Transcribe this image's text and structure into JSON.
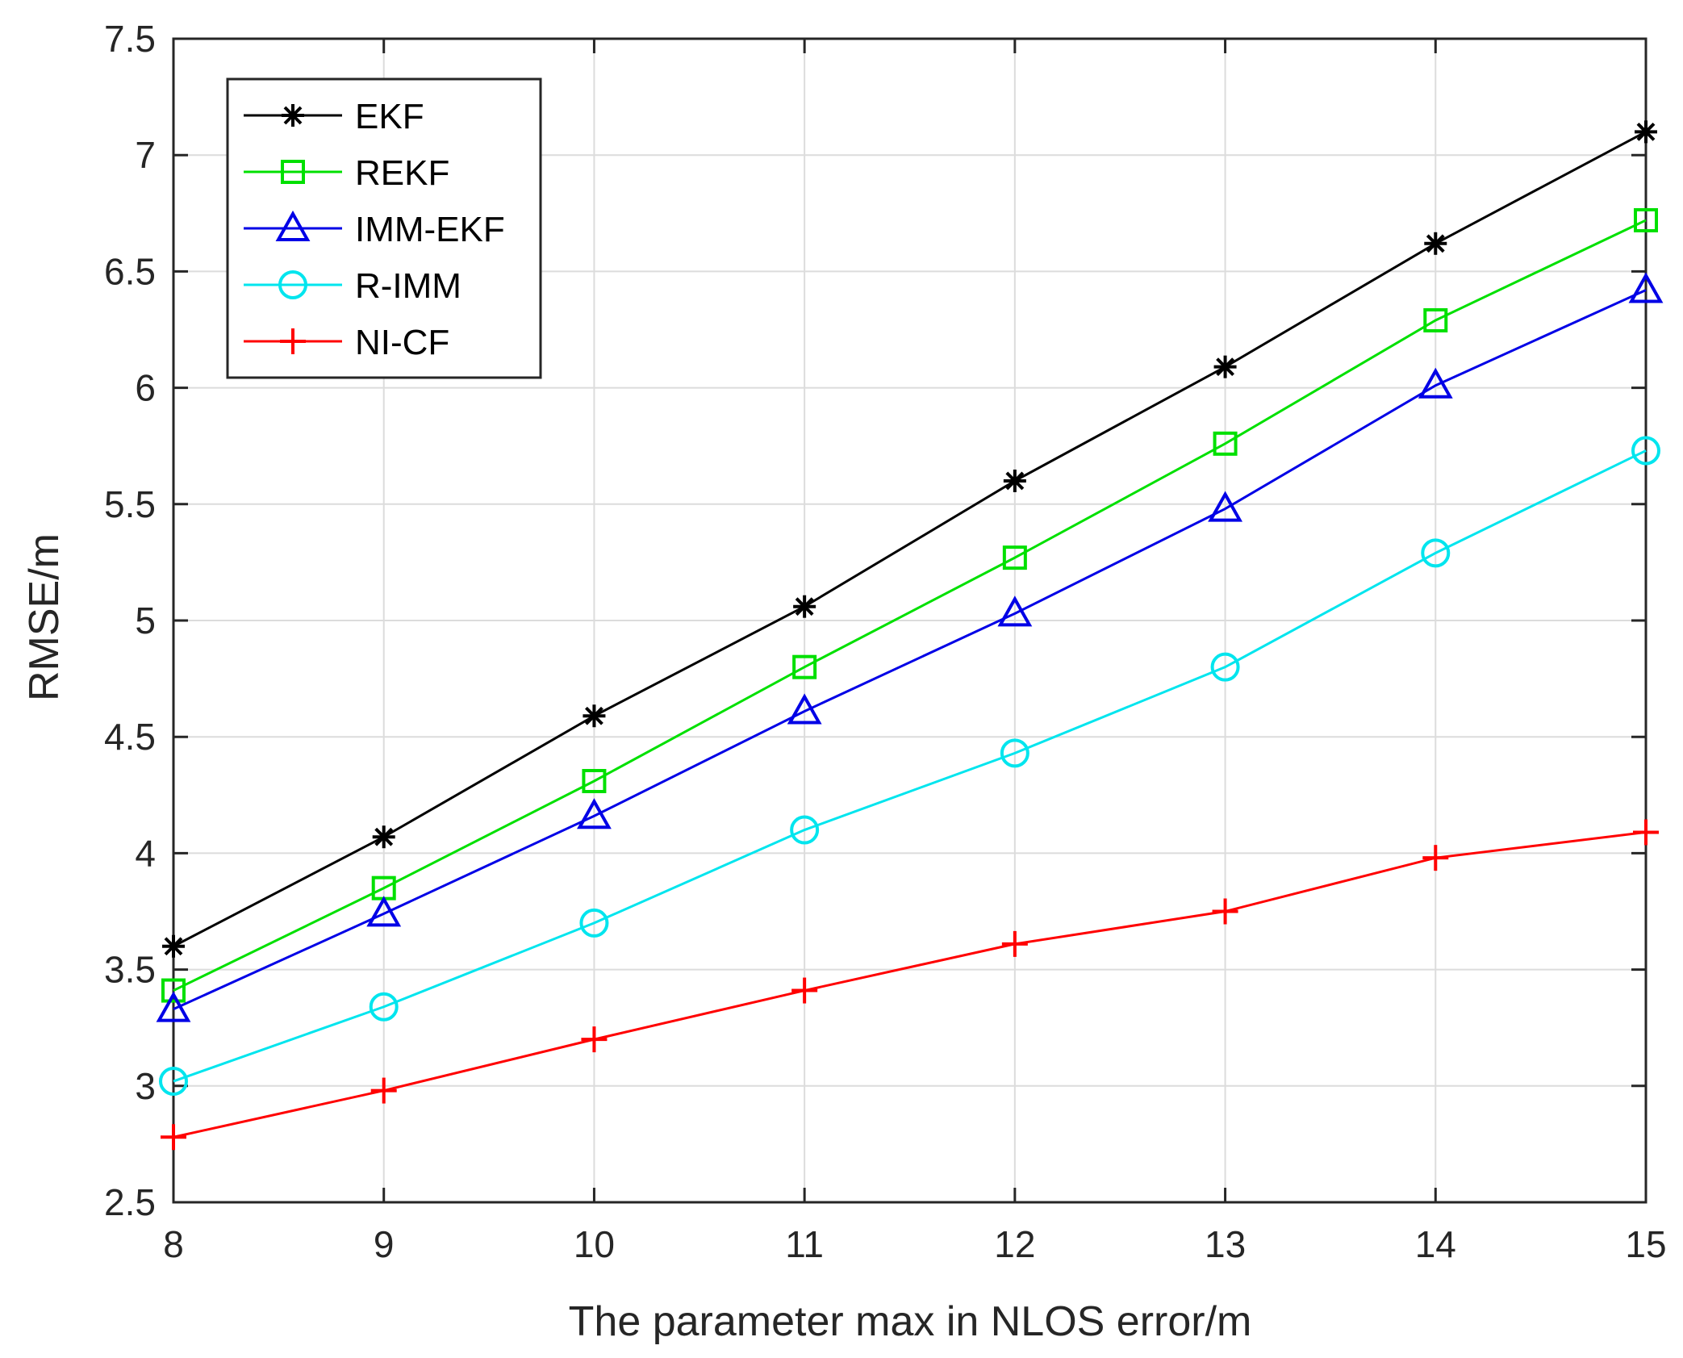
{
  "chart_data": {
    "type": "line",
    "title": "",
    "xlabel": "The parameter max in NLOS error/m",
    "ylabel": "RMSE/m",
    "x": [
      8,
      9,
      10,
      11,
      12,
      13,
      14,
      15
    ],
    "xlim": [
      8,
      15
    ],
    "ylim": [
      2.5,
      7.5
    ],
    "xticks": [
      "8",
      "9",
      "10",
      "11",
      "12",
      "13",
      "14",
      "15"
    ],
    "yticks": [
      "2.5",
      "3",
      "3.5",
      "4",
      "4.5",
      "5",
      "5.5",
      "6",
      "6.5",
      "7",
      "7.5"
    ],
    "ytick_values": [
      2.5,
      3,
      3.5,
      4,
      4.5,
      5,
      5.5,
      6,
      6.5,
      7,
      7.5
    ],
    "grid": true,
    "legend_position": "top-left",
    "series": [
      {
        "name": "EKF",
        "color": "#000000",
        "marker": "asterisk",
        "values": [
          3.6,
          4.07,
          4.59,
          5.06,
          5.6,
          6.09,
          6.62,
          7.1
        ]
      },
      {
        "name": "REKF",
        "color": "#00e000",
        "marker": "square",
        "values": [
          3.41,
          3.85,
          4.31,
          4.8,
          5.27,
          5.76,
          6.29,
          6.72
        ]
      },
      {
        "name": "IMM-EKF",
        "color": "#0000e6",
        "marker": "triangle",
        "values": [
          3.33,
          3.74,
          4.16,
          4.61,
          5.03,
          5.48,
          6.01,
          6.42
        ]
      },
      {
        "name": "R-IMM",
        "color": "#00e5ee",
        "marker": "circle",
        "values": [
          3.02,
          3.34,
          3.7,
          4.1,
          4.43,
          4.8,
          5.29,
          5.73
        ]
      },
      {
        "name": "NI-CF",
        "color": "#ff0000",
        "marker": "plus",
        "values": [
          2.78,
          2.98,
          3.2,
          3.41,
          3.61,
          3.75,
          3.98,
          4.09
        ]
      }
    ]
  }
}
